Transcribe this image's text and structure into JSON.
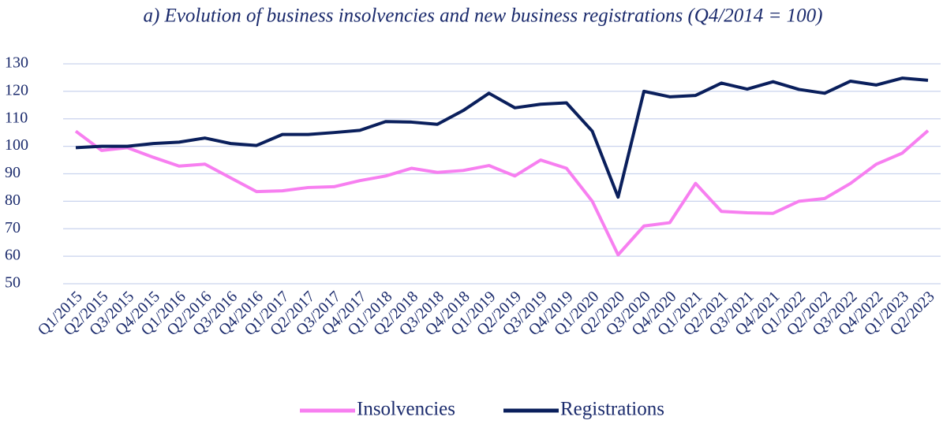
{
  "chart_data": {
    "type": "line",
    "title": "a) Evolution of business insolvencies and new business registrations (Q4/2014 = 100)",
    "categories": [
      "Q1/2015",
      "Q2/2015",
      "Q3/2015",
      "Q4/2015",
      "Q1/2016",
      "Q2/2016",
      "Q3/2016",
      "Q4/2016",
      "Q1/2017",
      "Q2/2017",
      "Q3/2017",
      "Q4/2017",
      "Q1/2018",
      "Q2/2018",
      "Q3/2018",
      "Q4/2018",
      "Q1/2019",
      "Q2/2019",
      "Q3/2019",
      "Q4/2019",
      "Q1/2020",
      "Q2/2020",
      "Q3/2020",
      "Q4/2020",
      "Q1/2021",
      "Q2/2021",
      "Q3/2021",
      "Q4/2021",
      "Q1/2022",
      "Q2/2022",
      "Q3/2022",
      "Q4/2022",
      "Q1/2023",
      "Q2/2023"
    ],
    "series": [
      {
        "name": "Insolvencies",
        "color": "#f77ff0",
        "values": [
          105.5,
          98.5,
          99.5,
          96,
          92.8,
          93.5,
          88.5,
          83.5,
          83.8,
          85,
          85.3,
          87.5,
          89.2,
          92,
          90.5,
          91.2,
          93,
          89.2,
          95,
          92,
          80,
          60.5,
          71,
          72.2,
          86.5,
          76.3,
          75.8,
          75.6,
          80,
          81,
          86.5,
          93.5,
          97.5,
          105.7
        ]
      },
      {
        "name": "Registrations",
        "color": "#0a1f5c",
        "values": [
          99.5,
          100,
          100,
          101,
          101.5,
          103,
          101,
          100.3,
          104.3,
          104.3,
          105,
          105.8,
          109,
          108.8,
          108,
          113,
          119.3,
          114,
          115.3,
          115.8,
          105.5,
          81.5,
          120,
          118,
          118.5,
          123,
          120.8,
          123.5,
          120.7,
          119.3,
          123.7,
          122.3,
          124.8,
          124
        ]
      }
    ],
    "ylim": [
      50,
      130
    ],
    "yticks": [
      50,
      60,
      70,
      80,
      90,
      100,
      110,
      120,
      130
    ],
    "grid": true,
    "legend": "bottom"
  }
}
